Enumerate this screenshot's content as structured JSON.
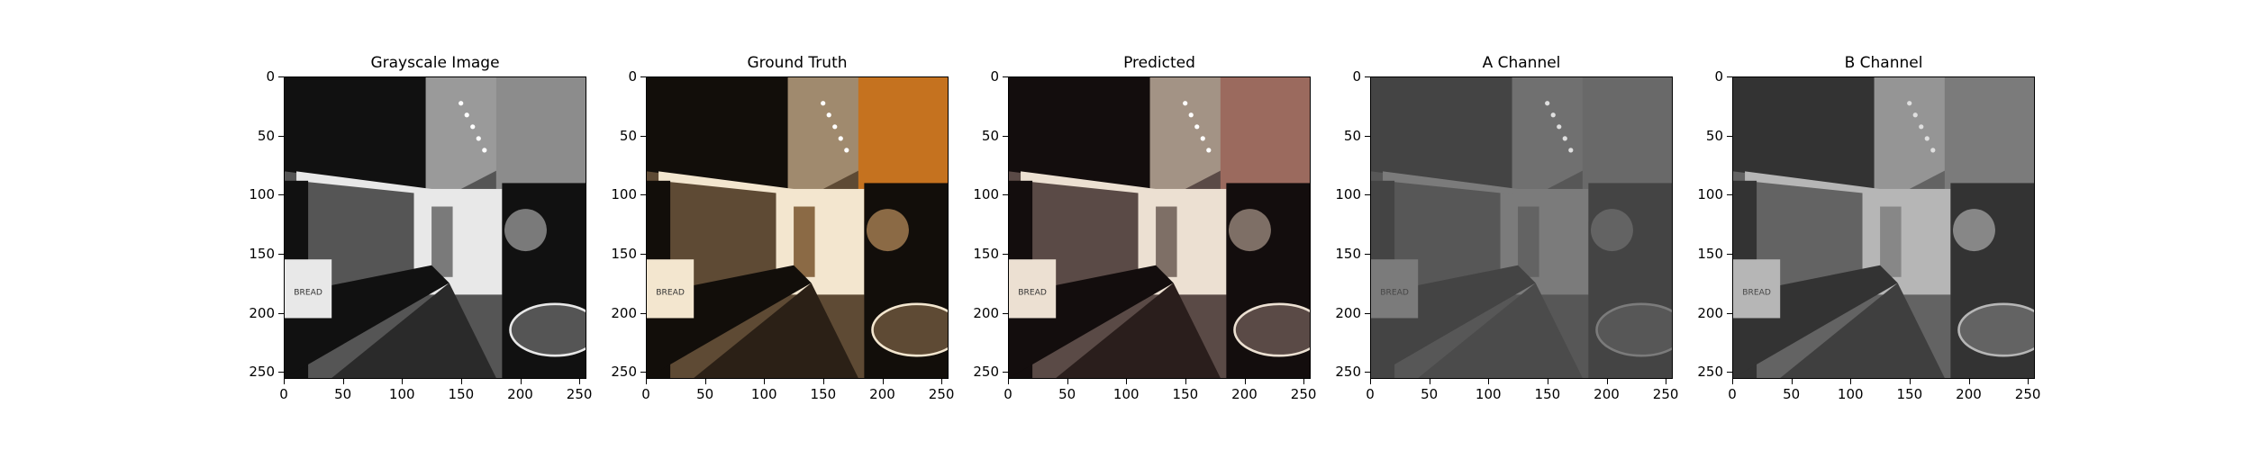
{
  "figure": {
    "panels": [
      {
        "id": "grayscale",
        "title": "Grayscale Image",
        "style": "gray"
      },
      {
        "id": "ground_truth",
        "title": "Ground Truth",
        "style": "color"
      },
      {
        "id": "predicted",
        "title": "Predicted",
        "style": "colorpred"
      },
      {
        "id": "a_channel",
        "title": "A Channel",
        "style": "achan"
      },
      {
        "id": "b_channel",
        "title": "B Channel",
        "style": "bchan"
      }
    ],
    "x_ticks": [
      "0",
      "50",
      "100",
      "150",
      "200",
      "250"
    ],
    "y_ticks": [
      "0",
      "50",
      "100",
      "150",
      "200",
      "250"
    ],
    "image_label_text": "BREAD"
  }
}
